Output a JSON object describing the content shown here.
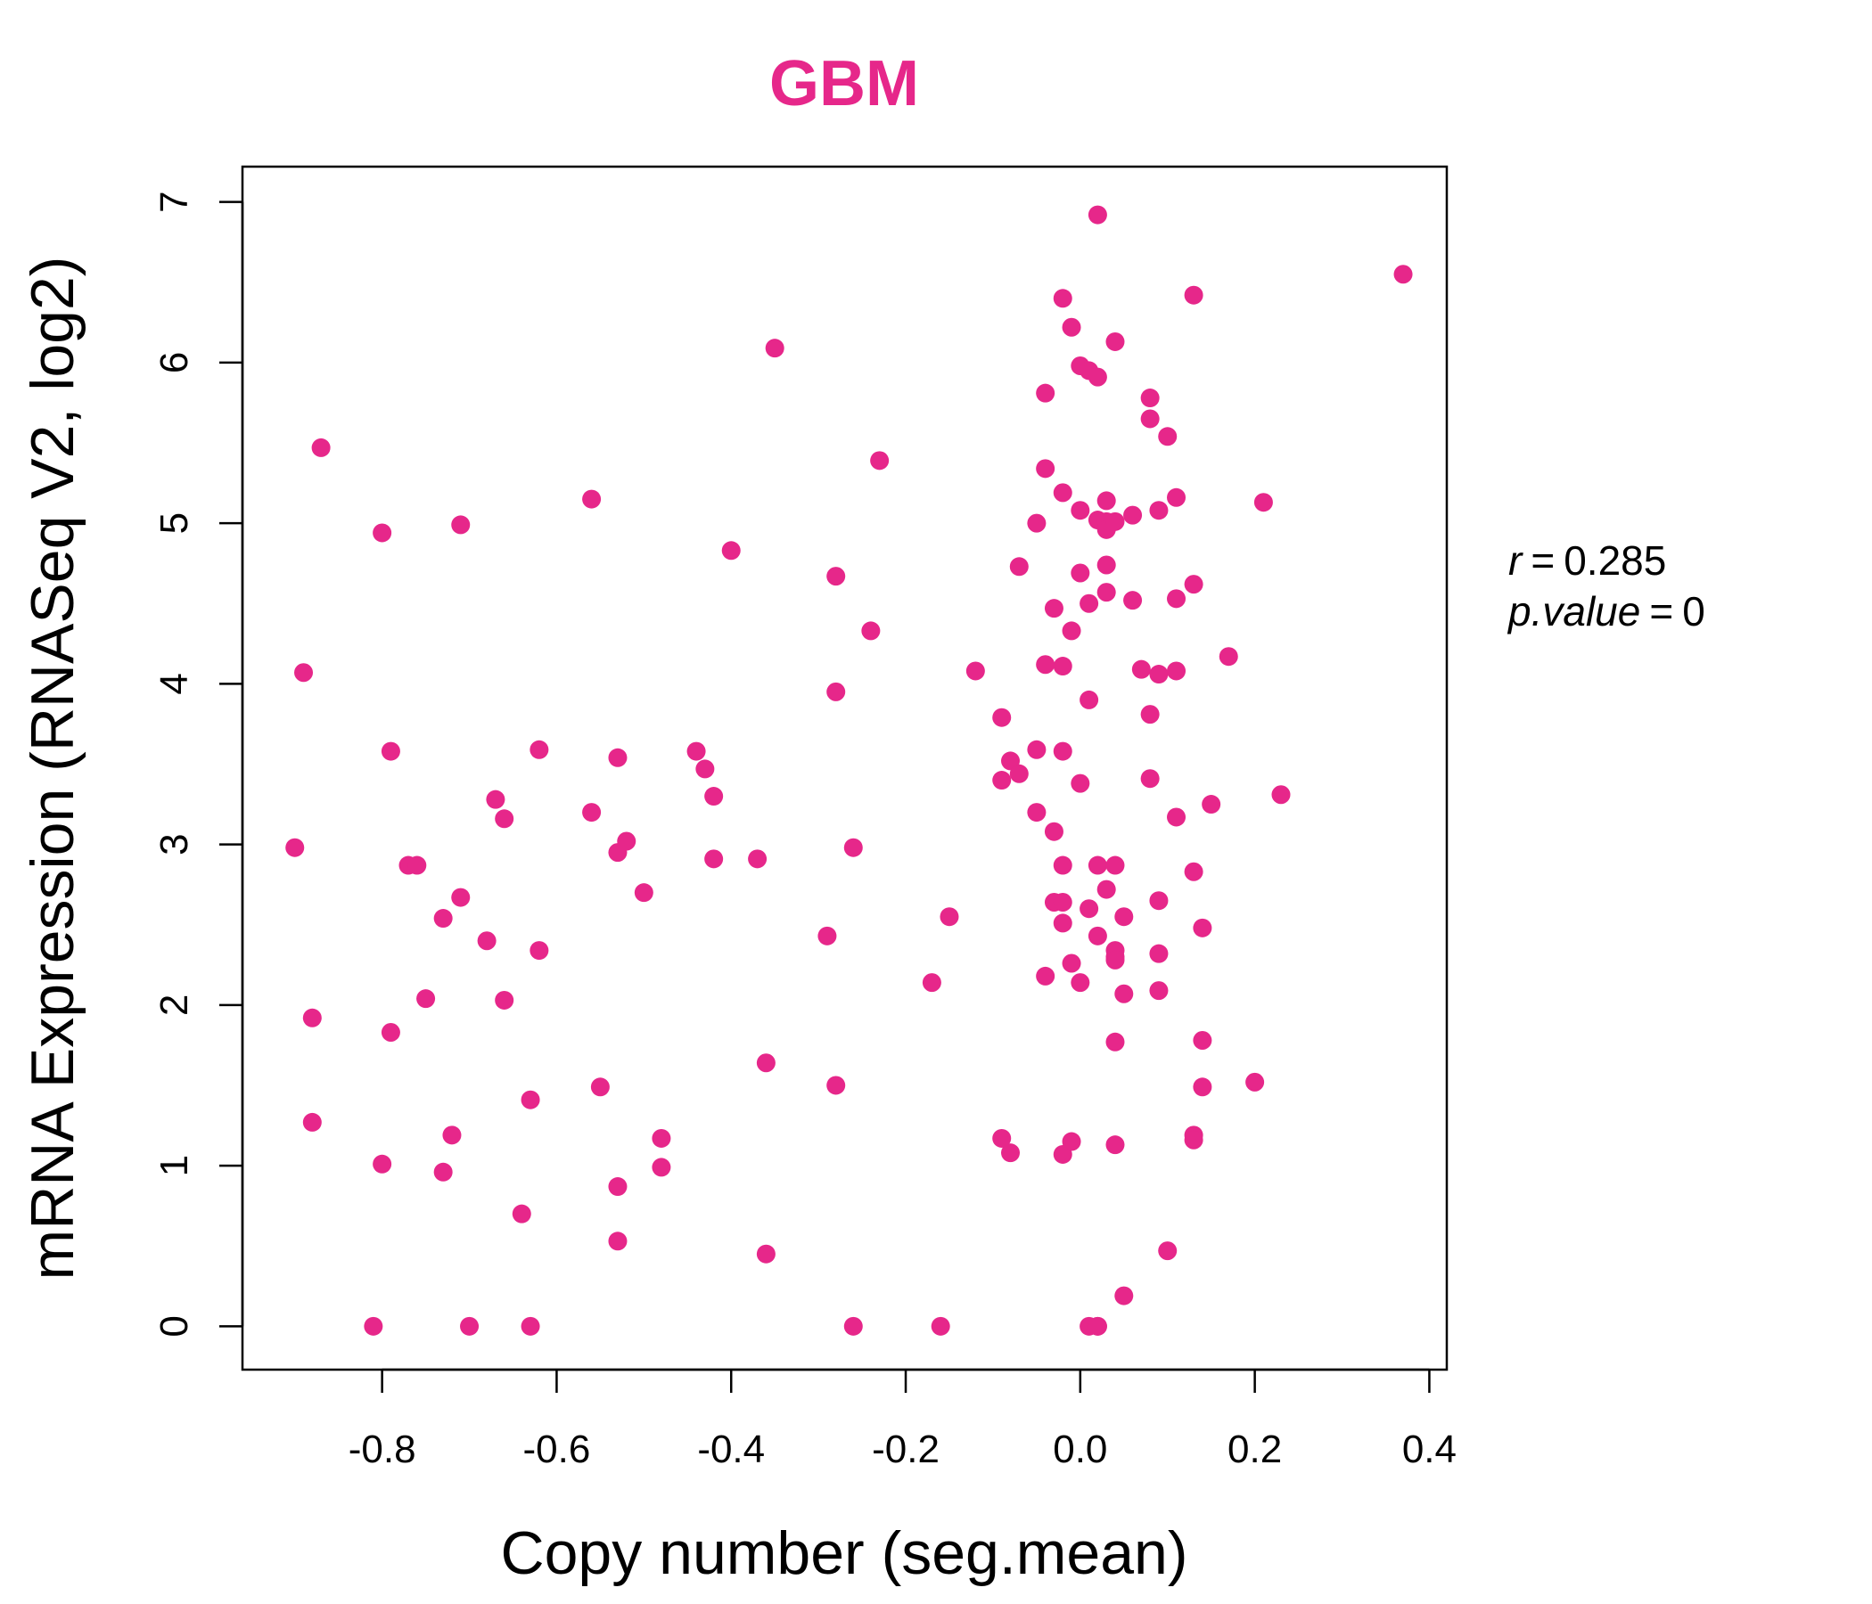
{
  "chart_data": {
    "type": "scatter",
    "title": "GBM",
    "xlabel": "Copy number (seg.mean)",
    "ylabel": "mRNA Expression (RNASeq V2, log2)",
    "xlim": [
      -0.96,
      0.42
    ],
    "ylim": [
      -0.27,
      7.22
    ],
    "x_ticks": [
      "-0.8",
      "-0.6",
      "-0.4",
      "-0.2",
      "0.0",
      "0.2",
      "0.4"
    ],
    "x_tick_values": [
      -0.8,
      -0.6,
      -0.4,
      -0.2,
      0.0,
      0.2,
      0.4
    ],
    "y_ticks": [
      "0",
      "1",
      "2",
      "3",
      "4",
      "5",
      "6",
      "7"
    ],
    "y_tick_values": [
      0,
      1,
      2,
      3,
      4,
      5,
      6,
      7
    ],
    "grid": false,
    "point_color": "#e6278a",
    "title_color": "#e6278a",
    "stats": {
      "r_label": "r",
      "r_value": "0.285",
      "p_label": "p.value",
      "p_value": "0"
    },
    "points": [
      [
        -0.9,
        2.98
      ],
      [
        -0.89,
        4.07
      ],
      [
        -0.88,
        1.92
      ],
      [
        -0.88,
        1.27
      ],
      [
        -0.87,
        5.47
      ],
      [
        -0.81,
        0.0
      ],
      [
        -0.8,
        4.94
      ],
      [
        -0.8,
        1.01
      ],
      [
        -0.79,
        1.83
      ],
      [
        -0.79,
        3.58
      ],
      [
        -0.77,
        2.87
      ],
      [
        -0.76,
        2.87
      ],
      [
        -0.75,
        2.04
      ],
      [
        -0.73,
        2.54
      ],
      [
        -0.73,
        0.96
      ],
      [
        -0.72,
        1.19
      ],
      [
        -0.71,
        2.67
      ],
      [
        -0.71,
        4.99
      ],
      [
        -0.7,
        0.0
      ],
      [
        -0.68,
        2.4
      ],
      [
        -0.67,
        3.28
      ],
      [
        -0.66,
        2.03
      ],
      [
        -0.66,
        3.16
      ],
      [
        -0.64,
        0.7
      ],
      [
        -0.63,
        1.41
      ],
      [
        -0.63,
        0.0
      ],
      [
        -0.62,
        2.34
      ],
      [
        -0.62,
        3.59
      ],
      [
        -0.56,
        3.2
      ],
      [
        -0.56,
        5.15
      ],
      [
        -0.55,
        1.49
      ],
      [
        -0.53,
        2.95
      ],
      [
        -0.53,
        3.54
      ],
      [
        -0.53,
        0.87
      ],
      [
        -0.53,
        0.53
      ],
      [
        -0.52,
        3.02
      ],
      [
        -0.5,
        2.7
      ],
      [
        -0.48,
        1.17
      ],
      [
        -0.48,
        0.99
      ],
      [
        -0.44,
        3.58
      ],
      [
        -0.43,
        3.47
      ],
      [
        -0.42,
        2.91
      ],
      [
        -0.42,
        3.3
      ],
      [
        -0.4,
        4.83
      ],
      [
        -0.37,
        2.91
      ],
      [
        -0.36,
        1.64
      ],
      [
        -0.36,
        0.45
      ],
      [
        -0.35,
        6.09
      ],
      [
        -0.29,
        2.43
      ],
      [
        -0.28,
        4.67
      ],
      [
        -0.28,
        3.95
      ],
      [
        -0.28,
        1.5
      ],
      [
        -0.26,
        2.98
      ],
      [
        -0.26,
        0.0
      ],
      [
        -0.24,
        4.33
      ],
      [
        -0.23,
        5.39
      ],
      [
        -0.17,
        2.14
      ],
      [
        -0.16,
        0.0
      ],
      [
        -0.15,
        2.55
      ],
      [
        -0.12,
        4.08
      ],
      [
        -0.09,
        3.4
      ],
      [
        -0.09,
        1.17
      ],
      [
        -0.09,
        3.79
      ],
      [
        -0.08,
        1.08
      ],
      [
        -0.08,
        3.52
      ],
      [
        -0.07,
        3.44
      ],
      [
        -0.07,
        4.73
      ],
      [
        -0.05,
        3.2
      ],
      [
        -0.05,
        3.59
      ],
      [
        -0.05,
        5.0
      ],
      [
        -0.04,
        4.12
      ],
      [
        -0.04,
        5.34
      ],
      [
        -0.04,
        5.81
      ],
      [
        -0.04,
        2.18
      ],
      [
        -0.03,
        2.64
      ],
      [
        -0.03,
        3.08
      ],
      [
        -0.03,
        4.47
      ],
      [
        -0.02,
        2.64
      ],
      [
        -0.02,
        4.11
      ],
      [
        -0.02,
        3.58
      ],
      [
        -0.02,
        2.51
      ],
      [
        -0.02,
        5.19
      ],
      [
        -0.02,
        6.4
      ],
      [
        -0.02,
        2.87
      ],
      [
        -0.02,
        1.07
      ],
      [
        -0.01,
        6.22
      ],
      [
        -0.01,
        2.26
      ],
      [
        -0.01,
        4.33
      ],
      [
        -0.01,
        1.15
      ],
      [
        0.0,
        3.38
      ],
      [
        0.0,
        2.14
      ],
      [
        0.0,
        5.98
      ],
      [
        0.0,
        5.08
      ],
      [
        0.0,
        4.69
      ],
      [
        0.01,
        4.5
      ],
      [
        0.01,
        3.9
      ],
      [
        0.01,
        2.6
      ],
      [
        0.01,
        5.95
      ],
      [
        0.01,
        0.0
      ],
      [
        0.02,
        6.92
      ],
      [
        0.02,
        2.87
      ],
      [
        0.02,
        5.91
      ],
      [
        0.02,
        5.02
      ],
      [
        0.02,
        0.0
      ],
      [
        0.02,
        2.43
      ],
      [
        0.02,
        0.0
      ],
      [
        0.03,
        5.01
      ],
      [
        0.03,
        4.96
      ],
      [
        0.03,
        5.14
      ],
      [
        0.03,
        4.74
      ],
      [
        0.03,
        2.72
      ],
      [
        0.03,
        4.57
      ],
      [
        0.04,
        2.3
      ],
      [
        0.04,
        1.77
      ],
      [
        0.04,
        2.34
      ],
      [
        0.04,
        1.13
      ],
      [
        0.04,
        2.28
      ],
      [
        0.04,
        6.13
      ],
      [
        0.04,
        5.01
      ],
      [
        0.04,
        2.87
      ],
      [
        0.05,
        2.55
      ],
      [
        0.05,
        2.07
      ],
      [
        0.05,
        0.19
      ],
      [
        0.06,
        5.05
      ],
      [
        0.06,
        4.52
      ],
      [
        0.07,
        4.09
      ],
      [
        0.08,
        5.78
      ],
      [
        0.08,
        3.81
      ],
      [
        0.08,
        5.65
      ],
      [
        0.08,
        3.41
      ],
      [
        0.09,
        2.65
      ],
      [
        0.09,
        4.06
      ],
      [
        0.09,
        5.08
      ],
      [
        0.09,
        2.32
      ],
      [
        0.09,
        2.09
      ],
      [
        0.1,
        5.54
      ],
      [
        0.1,
        0.47
      ],
      [
        0.11,
        3.17
      ],
      [
        0.11,
        4.08
      ],
      [
        0.11,
        5.16
      ],
      [
        0.11,
        4.53
      ],
      [
        0.13,
        6.42
      ],
      [
        0.13,
        1.19
      ],
      [
        0.13,
        4.62
      ],
      [
        0.13,
        2.83
      ],
      [
        0.13,
        1.16
      ],
      [
        0.14,
        1.78
      ],
      [
        0.14,
        1.49
      ],
      [
        0.14,
        2.48
      ],
      [
        0.15,
        3.25
      ],
      [
        0.17,
        4.17
      ],
      [
        0.2,
        1.52
      ],
      [
        0.21,
        5.13
      ],
      [
        0.23,
        3.31
      ],
      [
        0.37,
        6.55
      ]
    ]
  }
}
